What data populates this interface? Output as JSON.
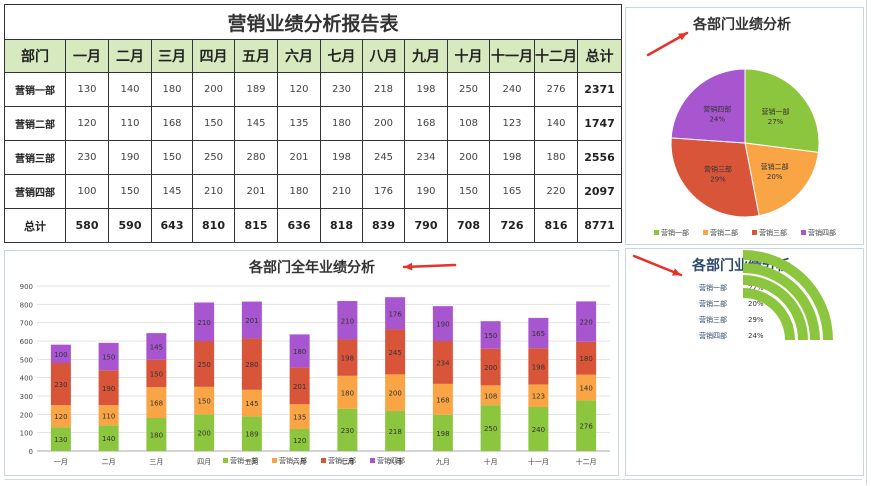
{
  "table": {
    "title": "营销业绩分析报告表",
    "headers": [
      "部门",
      "一月",
      "二月",
      "三月",
      "四月",
      "五月",
      "六月",
      "七月",
      "八月",
      "九月",
      "十月",
      "十一月",
      "十二月",
      "总计"
    ],
    "rows": [
      {
        "name": "营销一部",
        "values": [
          "130",
          "140",
          "180",
          "200",
          "189",
          "120",
          "230",
          "218",
          "198",
          "250",
          "240",
          "276"
        ],
        "total": "2371"
      },
      {
        "name": "营销二部",
        "values": [
          "120",
          "110",
          "168",
          "150",
          "145",
          "135",
          "180",
          "200",
          "168",
          "108",
          "123",
          "140"
        ],
        "total": "1747"
      },
      {
        "name": "营销三部",
        "values": [
          "230",
          "190",
          "150",
          "250",
          "280",
          "201",
          "198",
          "245",
          "234",
          "200",
          "198",
          "180"
        ],
        "total": "2556"
      },
      {
        "name": "营销四部",
        "values": [
          "100",
          "150",
          "145",
          "210",
          "201",
          "180",
          "210",
          "176",
          "190",
          "150",
          "165",
          "220"
        ],
        "total": "2097"
      }
    ],
    "totals": {
      "name": "总计",
      "values": [
        "580",
        "590",
        "643",
        "810",
        "815",
        "636",
        "818",
        "839",
        "790",
        "708",
        "726",
        "816"
      ],
      "total": "8771"
    }
  },
  "colors": {
    "dept1": "#8cc63f",
    "dept2": "#f9a545",
    "dept3": "#d9553a",
    "dept4": "#a855d0",
    "arrow": "#e8312a",
    "table_header": "#d7e9bf"
  },
  "chart_data": [
    {
      "type": "pie",
      "title": "各部门业绩分析",
      "labels": [
        "营销一部",
        "营销二部",
        "营销三部",
        "营销四部"
      ],
      "values": [
        2371,
        1747,
        2556,
        2097
      ],
      "percent_labels": [
        "27%",
        "20%",
        "29%",
        "24%"
      ],
      "legend": "bottom"
    },
    {
      "type": "bar",
      "stacked": true,
      "title": "各部门全年业绩分析",
      "categories": [
        "一月",
        "二月",
        "三月",
        "四月",
        "五月",
        "六月",
        "七月",
        "八月",
        "九月",
        "十月",
        "十一月",
        "十二月"
      ],
      "series": [
        {
          "name": "营销一部",
          "values": [
            130,
            140,
            180,
            200,
            189,
            120,
            230,
            218,
            198,
            250,
            240,
            276
          ]
        },
        {
          "name": "营销二部",
          "values": [
            120,
            110,
            168,
            150,
            145,
            135,
            180,
            200,
            168,
            108,
            123,
            140
          ]
        },
        {
          "name": "营销三部",
          "values": [
            230,
            190,
            150,
            250,
            280,
            201,
            198,
            245,
            234,
            200,
            198,
            180
          ]
        },
        {
          "name": "营销四部",
          "values": [
            100,
            150,
            145,
            210,
            201,
            180,
            210,
            176,
            190,
            150,
            165,
            220
          ]
        }
      ],
      "ylim": [
        0,
        900
      ],
      "yticks": [
        "0",
        "100",
        "200",
        "300",
        "400",
        "500",
        "600",
        "700",
        "800",
        "900"
      ],
      "grid": true,
      "legend": "bottom"
    },
    {
      "type": "radial-bar",
      "title": "各部门业绩分析",
      "labels": [
        "营销一部",
        "营销二部",
        "营销三部",
        "营销四部"
      ],
      "values": [
        27,
        20,
        29,
        24
      ],
      "value_labels": [
        "27%",
        "20%",
        "29%",
        "24%"
      ]
    }
  ]
}
